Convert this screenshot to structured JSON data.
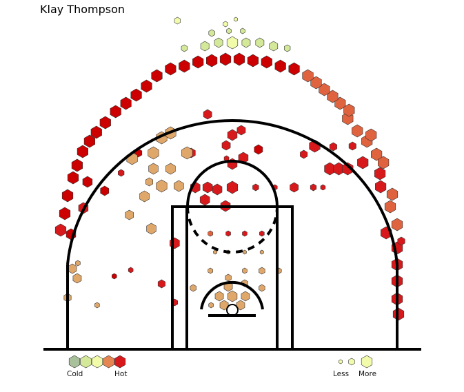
{
  "chart_data": {
    "type": "hexbin",
    "title": "Klay Thompson",
    "xlim": [
      -250,
      250
    ],
    "ylim": [
      -47.5,
      422.5
    ],
    "legend": {
      "color_low": "Cold",
      "color_high": "Hot",
      "size_low": "Less",
      "size_high": "More",
      "placement": "bottom"
    },
    "color_scale": [
      "#a9c19a",
      "#d3e899",
      "#f2fbaa",
      "#e58552",
      "#d7191c"
    ],
    "hex_colors": {
      "cold": "#a9c19a",
      "lightgreen": "#d3e899",
      "paleyellow": "#f2fbaa",
      "tan": "#e0a76b",
      "orange": "#e0633f",
      "red": "#d7191c",
      "darkred": "#cc0000"
    },
    "hexes": [
      [
        -8.5,
        220,
        "red",
        4
      ],
      [
        38,
        233,
        "darkred",
        7
      ],
      [
        -60,
        228,
        "red",
        7
      ],
      [
        -137,
        228,
        "darkred",
        6
      ],
      [
        -162,
        199,
        "red",
        5
      ],
      [
        -186,
        173,
        "darkred",
        7
      ],
      [
        -211,
        186,
        "darkred",
        8
      ],
      [
        -217,
        148,
        "red",
        8
      ],
      [
        -235,
        110,
        "darkred",
        8
      ],
      [
        -225,
        68,
        "tan",
        4
      ],
      [
        -233,
        60,
        "tan",
        7
      ],
      [
        -240,
        18,
        "tan",
        6
      ],
      [
        -226,
        46,
        "tan",
        7
      ],
      [
        -197,
        7,
        "tan",
        4
      ],
      [
        -172,
        49,
        "darkred",
        4
      ],
      [
        -148,
        58,
        "red",
        4
      ],
      [
        -103,
        38,
        "red",
        6
      ],
      [
        -84,
        11,
        "red",
        5
      ],
      [
        -57,
        32,
        "tan",
        5
      ],
      [
        -32,
        57,
        "tan",
        4
      ],
      [
        -6,
        47,
        "tan",
        5
      ],
      [
        18,
        39,
        "tan",
        5
      ],
      [
        43,
        32,
        "tan",
        5
      ],
      [
        -6,
        34,
        "tan",
        7
      ],
      [
        18,
        57,
        "tan",
        4
      ],
      [
        43,
        57,
        "tan",
        5
      ],
      [
        68,
        57,
        "tan",
        4
      ],
      [
        -19,
        20,
        "tan",
        7
      ],
      [
        0,
        20,
        "tan",
        8
      ],
      [
        19,
        20,
        "tan",
        7
      ],
      [
        -12,
        7,
        "tan",
        7
      ],
      [
        12,
        7,
        "tan",
        7
      ],
      [
        -31,
        7,
        "tan",
        4
      ],
      [
        -25,
        84,
        "tan",
        3
      ],
      [
        -6,
        84,
        "tan",
        3
      ],
      [
        18,
        84,
        "tan",
        3
      ],
      [
        43,
        84,
        "tan",
        3
      ],
      [
        -32,
        111,
        "orange",
        4
      ],
      [
        -6,
        111,
        "red",
        4
      ],
      [
        18,
        111,
        "red",
        4
      ],
      [
        43,
        111,
        "red",
        4
      ],
      [
        -84,
        97,
        "red",
        8
      ],
      [
        -118,
        118,
        "tan",
        8
      ],
      [
        -150,
        138,
        "tan",
        7
      ],
      [
        -128,
        165,
        "tan",
        8
      ],
      [
        -103,
        180,
        "tan",
        9
      ],
      [
        -115,
        205,
        "tan",
        8
      ],
      [
        -90,
        205,
        "tan",
        8
      ],
      [
        -78,
        180,
        "tan",
        8
      ],
      [
        -66,
        228,
        "tan",
        9
      ],
      [
        -115,
        228,
        "tan",
        9
      ],
      [
        -146,
        220,
        "tan",
        9
      ],
      [
        -103,
        250,
        "tan",
        9
      ],
      [
        -90,
        257,
        "tan",
        9
      ],
      [
        -121,
        186,
        "tan",
        6
      ],
      [
        -40,
        160,
        "red",
        8
      ],
      [
        -10,
        151,
        "red",
        8
      ],
      [
        -22,
        175,
        "red",
        8
      ],
      [
        0,
        178,
        "red",
        9
      ],
      [
        -54,
        178,
        "red",
        8
      ],
      [
        0,
        212,
        "red",
        8
      ],
      [
        16,
        221,
        "red",
        8
      ],
      [
        -9,
        239,
        "red",
        7
      ],
      [
        0,
        254,
        "red",
        8
      ],
      [
        13,
        261,
        "red",
        7
      ],
      [
        -36,
        284,
        "red",
        7
      ],
      [
        -36,
        178,
        "red",
        8
      ],
      [
        34,
        178,
        "red",
        5
      ],
      [
        62,
        178,
        "red",
        4
      ],
      [
        90,
        178,
        "red",
        7
      ],
      [
        118,
        178,
        "red",
        5
      ],
      [
        132,
        178,
        "red",
        4
      ],
      [
        142,
        205,
        "red",
        9
      ],
      [
        155,
        205,
        "red",
        9
      ],
      [
        168,
        205,
        "red",
        9
      ],
      [
        104,
        226,
        "red",
        6
      ],
      [
        120,
        238,
        "red",
        9
      ],
      [
        147,
        237,
        "red",
        6
      ],
      [
        175,
        238,
        "red",
        6
      ],
      [
        190,
        214,
        "red",
        9
      ],
      [
        215,
        198,
        "red",
        9
      ],
      [
        216,
        179,
        "red",
        9
      ],
      [
        230,
        150,
        "orange",
        9
      ],
      [
        233,
        168,
        "orange",
        9
      ],
      [
        224,
        112,
        "red",
        9
      ],
      [
        240,
        90,
        "red",
        9
      ],
      [
        240,
        66,
        "red",
        9
      ],
      [
        240,
        42,
        "red",
        9
      ],
      [
        240,
        16,
        "red",
        9
      ],
      [
        242,
        -6,
        "red",
        9
      ],
      [
        246,
        100,
        "red",
        6
      ],
      [
        240,
        124,
        "orange",
        9
      ],
      [
        157,
        300,
        "orange",
        9
      ],
      [
        168,
        278,
        "orange",
        9
      ],
      [
        182,
        260,
        "orange",
        9
      ],
      [
        196,
        245,
        "orange",
        9
      ],
      [
        210,
        226,
        "orange",
        9
      ],
      [
        220,
        214,
        "orange",
        9
      ],
      [
        202,
        254,
        "orange",
        9
      ],
      [
        170,
        290,
        "orange",
        9
      ],
      [
        146,
        310,
        "orange",
        9
      ],
      [
        134,
        320,
        "orange",
        9
      ],
      [
        122,
        330,
        "orange",
        9
      ],
      [
        110,
        340,
        "orange",
        9
      ],
      [
        -110,
        340,
        "darkred",
        9
      ],
      [
        -125,
        325,
        "darkred",
        9
      ],
      [
        -140,
        312,
        "darkred",
        9
      ],
      [
        -155,
        300,
        "darkred",
        9
      ],
      [
        -170,
        288,
        "darkred",
        9
      ],
      [
        -185,
        272,
        "darkred",
        9
      ],
      [
        -198,
        258,
        "darkred",
        9
      ],
      [
        -208,
        245,
        "darkred",
        9
      ],
      [
        -218,
        230,
        "darkred",
        9
      ],
      [
        -226,
        210,
        "darkred",
        9
      ],
      [
        -232,
        192,
        "darkred",
        9
      ],
      [
        -240,
        166,
        "darkred",
        9
      ],
      [
        -244,
        140,
        "darkred",
        9
      ],
      [
        -250,
        116,
        "red",
        9
      ],
      [
        -90,
        350,
        "darkred",
        9
      ],
      [
        -70,
        354,
        "darkred",
        9
      ],
      [
        -50,
        360,
        "darkred",
        9
      ],
      [
        -30,
        362,
        "darkred",
        9
      ],
      [
        -10,
        364,
        "darkred",
        9
      ],
      [
        10,
        364,
        "darkred",
        9
      ],
      [
        30,
        362,
        "darkred",
        9
      ],
      [
        50,
        360,
        "darkred",
        9
      ],
      [
        70,
        354,
        "darkred",
        9
      ],
      [
        90,
        350,
        "darkred",
        9
      ],
      [
        -70,
        380,
        "lightgreen",
        5
      ],
      [
        -40,
        383,
        "lightgreen",
        7
      ],
      [
        -20,
        388,
        "lightgreen",
        7
      ],
      [
        0,
        388,
        "paleyellow",
        9
      ],
      [
        20,
        388,
        "lightgreen",
        7
      ],
      [
        40,
        388,
        "lightgreen",
        7
      ],
      [
        60,
        383,
        "lightgreen",
        7
      ],
      [
        80,
        380,
        "lightgreen",
        5
      ],
      [
        -30,
        402,
        "lightgreen",
        5
      ],
      [
        -5,
        405,
        "lightgreen",
        4
      ],
      [
        15,
        405,
        "lightgreen",
        4
      ],
      [
        -80,
        420,
        "paleyellow",
        5
      ],
      [
        -10,
        415,
        "paleyellow",
        4
      ],
      [
        5,
        422,
        "paleyellow",
        3
      ]
    ]
  }
}
